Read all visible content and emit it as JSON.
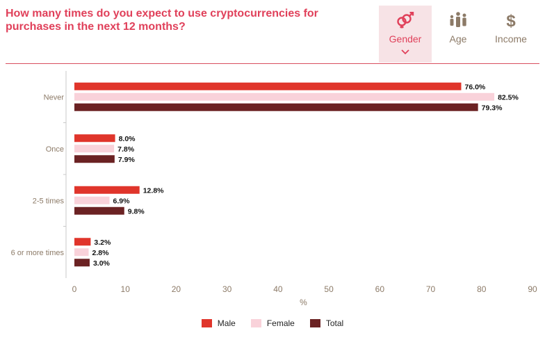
{
  "header": {
    "title": "How many times do you expect to use cryptocurrencies for purchases in the next 12 months?"
  },
  "tabs": [
    {
      "label": "Gender",
      "icon": "gender-icon",
      "active": true
    },
    {
      "label": "Age",
      "icon": "age-icon",
      "active": false
    },
    {
      "label": "Income",
      "icon": "dollar-icon",
      "active": false
    }
  ],
  "colors": {
    "accent": "#e0405a",
    "male": "#e0352b",
    "female": "#f9d2da",
    "total": "#6b2223",
    "tab_text": "#8c7a67",
    "tab_active_bg": "#f7e3e6"
  },
  "chart_data": {
    "type": "bar",
    "orientation": "horizontal",
    "categories": [
      "Never",
      "Once",
      "2-5 times",
      "6 or more times"
    ],
    "series": [
      {
        "name": "Male",
        "values": [
          76.0,
          8.0,
          12.8,
          3.2
        ],
        "color": "#e0352b"
      },
      {
        "name": "Female",
        "values": [
          82.5,
          7.8,
          6.9,
          2.8
        ],
        "color": "#f9d2da"
      },
      {
        "name": "Total",
        "values": [
          79.3,
          7.9,
          9.8,
          3.0
        ],
        "color": "#6b2223"
      }
    ],
    "value_labels": [
      [
        "76.0%",
        "8.0%",
        "12.8%",
        "3.2%"
      ],
      [
        "82.5%",
        "7.8%",
        "6.9%",
        "2.8%"
      ],
      [
        "79.3%",
        "7.9%",
        "9.8%",
        "3.0%"
      ]
    ],
    "xlabel": "%",
    "xlim": [
      0,
      90
    ],
    "xticks": [
      "0",
      "10",
      "20",
      "30",
      "40",
      "50",
      "60",
      "70",
      "80",
      "90"
    ],
    "grid": false,
    "legend_position": "bottom"
  }
}
